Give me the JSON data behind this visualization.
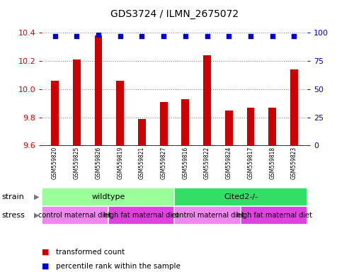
{
  "title": "GDS3724 / ILMN_2675072",
  "samples": [
    "GSM559820",
    "GSM559825",
    "GSM559826",
    "GSM559819",
    "GSM559821",
    "GSM559827",
    "GSM559816",
    "GSM559822",
    "GSM559824",
    "GSM559817",
    "GSM559818",
    "GSM559823"
  ],
  "transformed_counts": [
    10.06,
    10.21,
    10.38,
    10.06,
    9.79,
    9.91,
    9.93,
    10.24,
    9.85,
    9.87,
    9.87,
    10.14
  ],
  "percentile_ranks": [
    97,
    97,
    98,
    97,
    97,
    97,
    97,
    97,
    97,
    97,
    97,
    97
  ],
  "ylim_left": [
    9.6,
    10.4
  ],
  "ylim_right": [
    0,
    100
  ],
  "yticks_left": [
    9.6,
    9.8,
    10.0,
    10.2,
    10.4
  ],
  "yticks_right": [
    0,
    25,
    50,
    75,
    100
  ],
  "bar_color": "#cc0000",
  "dot_color": "#0000cc",
  "bar_bottom": 9.6,
  "strain_groups": [
    {
      "label": "wildtype",
      "start": 0,
      "end": 6,
      "color": "#99ff99"
    },
    {
      "label": "Cited2-/-",
      "start": 6,
      "end": 12,
      "color": "#33dd66"
    }
  ],
  "stress_groups": [
    {
      "label": "control maternal diet",
      "start": 0,
      "end": 3,
      "color": "#ee88ee"
    },
    {
      "label": "high fat maternal diet",
      "start": 3,
      "end": 6,
      "color": "#dd44dd"
    },
    {
      "label": "control maternal diet",
      "start": 6,
      "end": 9,
      "color": "#ee88ee"
    },
    {
      "label": "high fat maternal diet",
      "start": 9,
      "end": 12,
      "color": "#dd44dd"
    }
  ],
  "xlabel_strain": "strain",
  "xlabel_stress": "stress",
  "legend_bar_label": "transformed count",
  "legend_dot_label": "percentile rank within the sample",
  "tick_color_left": "#cc0000",
  "tick_color_right": "#0000cc",
  "grid_color": "#888888",
  "background_color": "#ffffff",
  "sample_box_color": "#d0d0d0"
}
